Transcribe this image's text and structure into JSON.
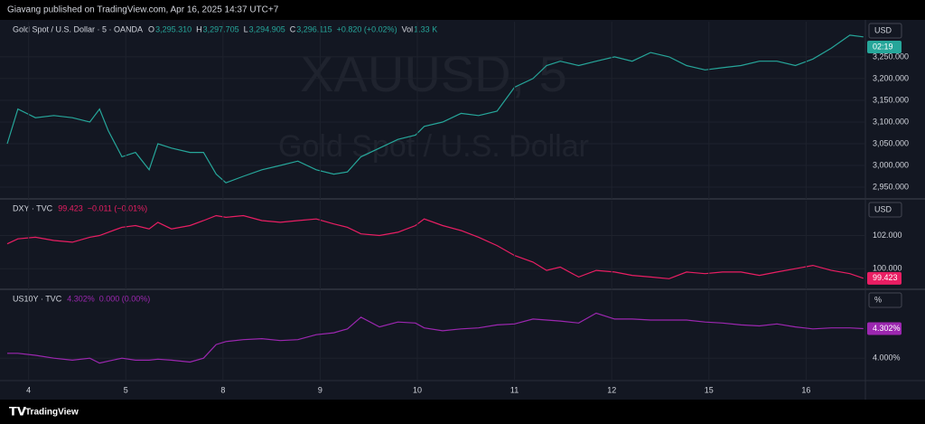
{
  "header": {
    "text": "Giavang published on TradingView.com, Apr 16, 2025 14:37 UTC+7"
  },
  "footer": {
    "brand": "TradingView"
  },
  "chart_data": [
    {
      "type": "line",
      "title": "Gold Spot / U.S. Dollar · 5 · OANDA",
      "color": "#26a69a",
      "watermark": "XAUUSD, 5",
      "watermark_sub": "Gold Spot / U.S. Dollar",
      "currency": "USD",
      "last_value_label": "02:19",
      "legend_items": [
        {
          "text": "O",
          "color": "#d1d4dc"
        },
        {
          "text": "3,295.310",
          "color": "#26a69a"
        },
        {
          "text": "H",
          "color": "#d1d4dc"
        },
        {
          "text": "3,297.705",
          "color": "#26a69a"
        },
        {
          "text": "L",
          "color": "#d1d4dc"
        },
        {
          "text": "3,294.905",
          "color": "#26a69a"
        },
        {
          "text": "C",
          "color": "#d1d4dc"
        },
        {
          "text": "3,296.115",
          "color": "#26a69a"
        },
        {
          "text": "+0.820 (+0.02%)",
          "color": "#26a69a"
        },
        {
          "text": "Vol",
          "color": "#d1d4dc"
        },
        {
          "text": "1.33 K",
          "color": "#26a69a"
        }
      ],
      "x": [
        -0.22,
        -0.11,
        0.07,
        0.26,
        0.45,
        0.63,
        0.73,
        0.82,
        0.96,
        1.1,
        1.24,
        1.33,
        1.47,
        1.66,
        1.8,
        1.93,
        2.03,
        2.21,
        2.4,
        2.59,
        2.77,
        2.96,
        3.14,
        3.28,
        3.42,
        3.61,
        3.8,
        3.98,
        4.07,
        4.26,
        4.45,
        4.63,
        4.82,
        5.0,
        5.19,
        5.33,
        5.47,
        5.66,
        5.84,
        6.03,
        6.21,
        6.4,
        6.59,
        6.77,
        6.96,
        7.14,
        7.33,
        7.52,
        7.7,
        7.89,
        8.07,
        8.26,
        8.45,
        8.59
      ],
      "values": [
        3050,
        3130,
        3110,
        3115,
        3110,
        3100,
        3130,
        3080,
        3020,
        3030,
        2990,
        3050,
        3040,
        3030,
        3030,
        2980,
        2960,
        2975,
        2990,
        3000,
        3010,
        2990,
        2980,
        2985,
        3020,
        3040,
        3060,
        3070,
        3090,
        3100,
        3120,
        3115,
        3125,
        3180,
        3200,
        3230,
        3240,
        3230,
        3240,
        3250,
        3240,
        3260,
        3250,
        3230,
        3220,
        3225,
        3230,
        3240,
        3240,
        3230,
        3245,
        3270,
        3300,
        3296.115
      ],
      "xlim": [
        -0.22,
        8.61
      ],
      "ylim": [
        2923,
        3331
      ],
      "yticks": [
        {
          "value": 2950,
          "label": "2,950.000"
        },
        {
          "value": 3000,
          "label": "3,000.000"
        },
        {
          "value": 3050,
          "label": "3,050.000"
        },
        {
          "value": 3100,
          "label": "3,100.000"
        },
        {
          "value": 3150,
          "label": "3,150.000"
        },
        {
          "value": 3200,
          "label": "3,200.000"
        },
        {
          "value": 3250,
          "label": "3,250.000"
        }
      ],
      "grid": true
    },
    {
      "type": "line",
      "title": "DXY · TVC",
      "color": "#e91e63",
      "currency": "USD",
      "last_value_label": "99.423",
      "legend_items": [
        {
          "text": "99.423",
          "color": "#e91e63"
        },
        {
          "text": "−0.011 (−0.01%)",
          "color": "#e91e63"
        }
      ],
      "x": [
        -0.22,
        -0.11,
        0.07,
        0.26,
        0.45,
        0.63,
        0.73,
        0.82,
        0.96,
        1.1,
        1.24,
        1.33,
        1.47,
        1.66,
        1.8,
        1.93,
        2.03,
        2.21,
        2.4,
        2.59,
        2.77,
        2.96,
        3.14,
        3.28,
        3.42,
        3.61,
        3.8,
        3.98,
        4.07,
        4.26,
        4.45,
        4.63,
        4.82,
        5.0,
        5.19,
        5.33,
        5.47,
        5.66,
        5.84,
        6.03,
        6.21,
        6.4,
        6.59,
        6.77,
        6.96,
        7.14,
        7.33,
        7.52,
        7.7,
        7.89,
        8.07,
        8.26,
        8.45,
        8.59
      ],
      "values": [
        101.5,
        101.8,
        101.9,
        101.7,
        101.6,
        101.9,
        102.0,
        102.2,
        102.5,
        102.6,
        102.4,
        102.8,
        102.4,
        102.6,
        102.9,
        103.2,
        103.1,
        103.2,
        102.9,
        102.8,
        102.9,
        103.0,
        102.7,
        102.5,
        102.1,
        102.0,
        102.2,
        102.6,
        103.0,
        102.6,
        102.3,
        101.9,
        101.4,
        100.8,
        100.4,
        99.9,
        100.1,
        99.5,
        99.9,
        99.8,
        99.6,
        99.5,
        99.4,
        99.8,
        99.7,
        99.8,
        99.8,
        99.6,
        99.8,
        100.0,
        100.2,
        99.9,
        99.7,
        99.423
      ],
      "xlim": [
        -0.22,
        8.61
      ],
      "ylim": [
        98.76,
        104.1
      ],
      "yticks": [
        {
          "value": 100,
          "label": "100.000"
        },
        {
          "value": 102,
          "label": "102.000"
        }
      ],
      "grid": true
    },
    {
      "type": "line",
      "title": "US10Y · TVC",
      "color": "#9c27b0",
      "currency": "%",
      "last_value_label": "4.302%",
      "legend_items": [
        {
          "text": "4.302%",
          "color": "#9c27b0"
        },
        {
          "text": "0.000 (0.00%)",
          "color": "#9c27b0"
        }
      ],
      "x": [
        -0.22,
        -0.11,
        0.07,
        0.26,
        0.45,
        0.63,
        0.73,
        0.82,
        0.96,
        1.1,
        1.24,
        1.33,
        1.47,
        1.66,
        1.8,
        1.93,
        2.03,
        2.21,
        2.4,
        2.59,
        2.77,
        2.96,
        3.14,
        3.28,
        3.42,
        3.61,
        3.8,
        3.98,
        4.07,
        4.26,
        4.45,
        4.63,
        4.82,
        5.0,
        5.19,
        5.33,
        5.47,
        5.66,
        5.84,
        6.03,
        6.21,
        6.4,
        6.59,
        6.77,
        6.96,
        7.14,
        7.33,
        7.52,
        7.7,
        7.89,
        8.07,
        8.26,
        8.45,
        8.59
      ],
      "values": [
        4.05,
        4.05,
        4.03,
        4.0,
        3.98,
        4.0,
        3.95,
        3.97,
        4.0,
        3.98,
        3.98,
        3.99,
        3.98,
        3.96,
        4.0,
        4.14,
        4.17,
        4.19,
        4.2,
        4.18,
        4.19,
        4.24,
        4.26,
        4.3,
        4.42,
        4.32,
        4.37,
        4.36,
        4.31,
        4.28,
        4.3,
        4.31,
        4.34,
        4.35,
        4.4,
        4.39,
        4.38,
        4.36,
        4.46,
        4.4,
        4.4,
        4.39,
        4.39,
        4.39,
        4.37,
        4.36,
        4.34,
        4.33,
        4.35,
        4.32,
        4.3,
        4.31,
        4.31,
        4.302
      ],
      "xlim": [
        -0.22,
        8.61
      ],
      "ylim": [
        3.78,
        4.686
      ],
      "yticks": [
        {
          "value": 4.0,
          "label": "4.000%"
        }
      ],
      "xticks": [
        {
          "value": 0,
          "label": "4"
        },
        {
          "value": 1,
          "label": "5"
        },
        {
          "value": 2,
          "label": "8"
        },
        {
          "value": 3,
          "label": "9"
        },
        {
          "value": 4,
          "label": "10"
        },
        {
          "value": 5,
          "label": "11"
        },
        {
          "value": 6,
          "label": "12"
        },
        {
          "value": 7,
          "label": "15"
        },
        {
          "value": 8,
          "label": "16"
        }
      ],
      "grid": true
    }
  ]
}
